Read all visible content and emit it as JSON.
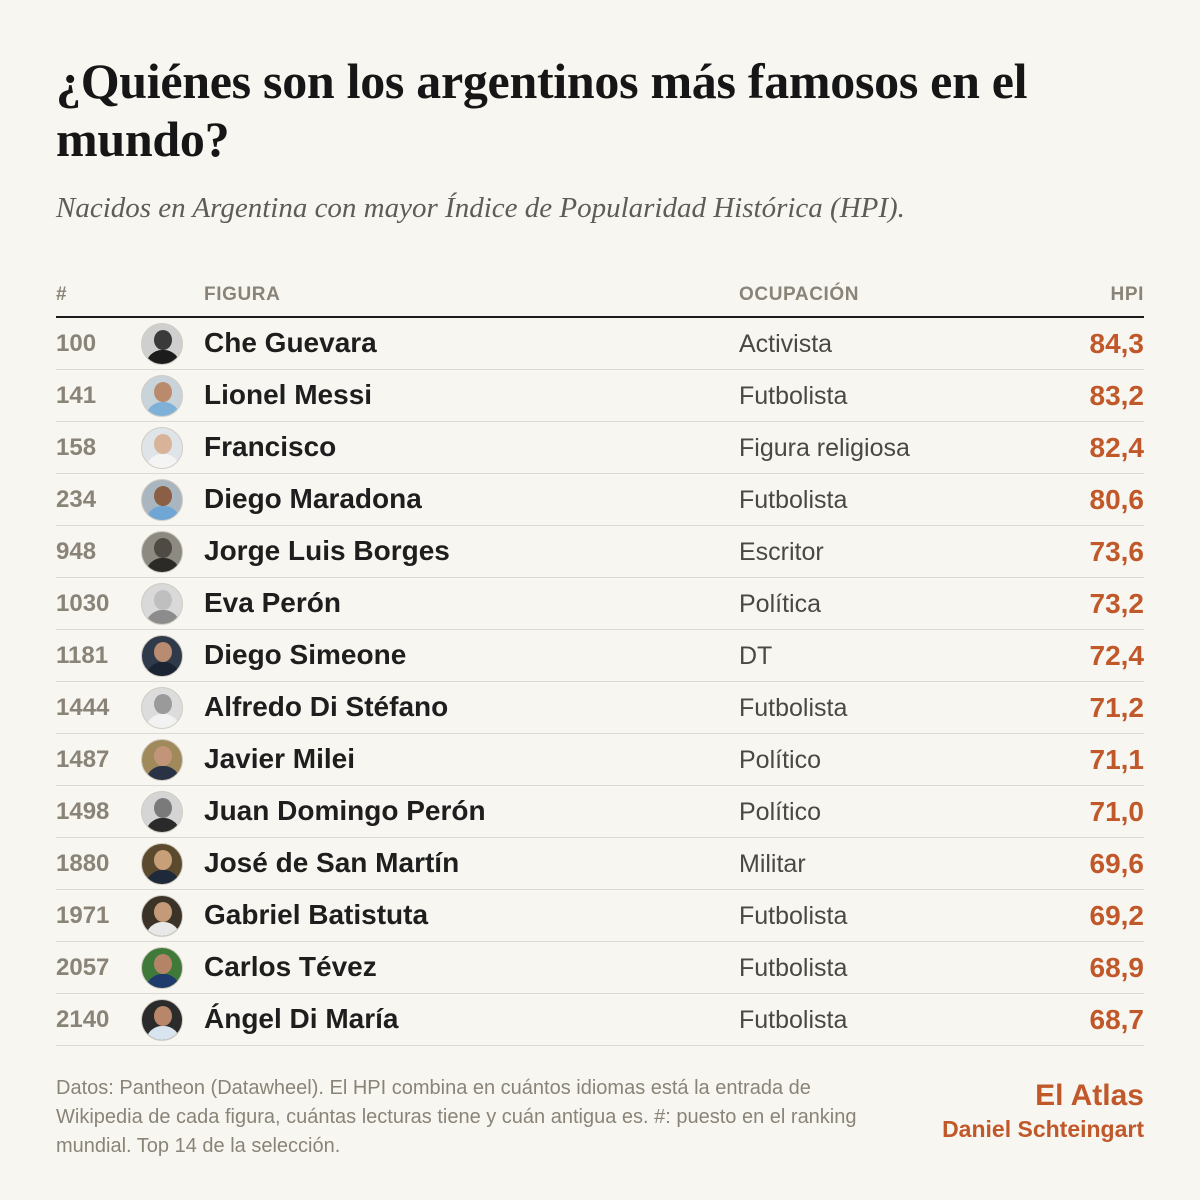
{
  "title": "¿Quiénes son los argentinos más famosos en el mundo?",
  "subtitle": "Nacidos en Argentina con mayor Índice de Popularidad Histórica (HPI).",
  "table": {
    "headers": {
      "rank": "#",
      "figure": "FIGURA",
      "occupation": "OCUPACIÓN",
      "hpi": "HPI"
    }
  },
  "chart_data": {
    "type": "table",
    "columns": [
      "#",
      "FIGURA",
      "OCUPACIÓN",
      "HPI"
    ],
    "rows": [
      {
        "rank": "100",
        "name": "Che Guevara",
        "occupation": "Activista",
        "hpi": "84,3",
        "avatar": {
          "bg": "#cfcfcf",
          "skin": "#3a3a3a",
          "cloth": "#1c1c1c"
        }
      },
      {
        "rank": "141",
        "name": "Lionel Messi",
        "occupation": "Futbolista",
        "hpi": "83,2",
        "avatar": {
          "bg": "#c9d3da",
          "skin": "#b98a6b",
          "cloth": "#7fb0d8"
        }
      },
      {
        "rank": "158",
        "name": "Francisco",
        "occupation": "Figura religiosa",
        "hpi": "82,4",
        "avatar": {
          "bg": "#dfe4e8",
          "skin": "#d8b39a",
          "cloth": "#f4f4f4"
        }
      },
      {
        "rank": "234",
        "name": "Diego Maradona",
        "occupation": "Futbolista",
        "hpi": "80,6",
        "avatar": {
          "bg": "#a9b6c0",
          "skin": "#8a5f45",
          "cloth": "#6fa6d4"
        }
      },
      {
        "rank": "948",
        "name": "Jorge Luis Borges",
        "occupation": "Escritor",
        "hpi": "73,6",
        "avatar": {
          "bg": "#8d8a82",
          "skin": "#4f4b44",
          "cloth": "#2c2a26"
        }
      },
      {
        "rank": "1030",
        "name": "Eva Perón",
        "occupation": "Política",
        "hpi": "73,2",
        "avatar": {
          "bg": "#d9d9d9",
          "skin": "#bfbfbf",
          "cloth": "#8c8c8c"
        }
      },
      {
        "rank": "1181",
        "name": "Diego Simeone",
        "occupation": "DT",
        "hpi": "72,4",
        "avatar": {
          "bg": "#2f3a4a",
          "skin": "#b98b70",
          "cloth": "#1b2433"
        }
      },
      {
        "rank": "1444",
        "name": "Alfredo Di Stéfano",
        "occupation": "Futbolista",
        "hpi": "71,2",
        "avatar": {
          "bg": "#dcdcdc",
          "skin": "#9a9a9a",
          "cloth": "#f2f2f2"
        }
      },
      {
        "rank": "1487",
        "name": "Javier Milei",
        "occupation": "Político",
        "hpi": "71,1",
        "avatar": {
          "bg": "#a08a5c",
          "skin": "#c29478",
          "cloth": "#2a3246"
        }
      },
      {
        "rank": "1498",
        "name": "Juan Domingo Perón",
        "occupation": "Político",
        "hpi": "71,0",
        "avatar": {
          "bg": "#d5d5d5",
          "skin": "#7a7a7a",
          "cloth": "#2a2a2a"
        }
      },
      {
        "rank": "1880",
        "name": "José de San Martín",
        "occupation": "Militar",
        "hpi": "69,6",
        "avatar": {
          "bg": "#5c4a2e",
          "skin": "#c7a07a",
          "cloth": "#1e2a3a"
        }
      },
      {
        "rank": "1971",
        "name": "Gabriel Batistuta",
        "occupation": "Futbolista",
        "hpi": "69,2",
        "avatar": {
          "bg": "#3b3328",
          "skin": "#c59a78",
          "cloth": "#e8e8e8"
        }
      },
      {
        "rank": "2057",
        "name": "Carlos Tévez",
        "occupation": "Futbolista",
        "hpi": "68,9",
        "avatar": {
          "bg": "#3f7a3a",
          "skin": "#b58466",
          "cloth": "#1f3b6b"
        }
      },
      {
        "rank": "2140",
        "name": "Ángel Di María",
        "occupation": "Futbolista",
        "hpi": "68,7",
        "avatar": {
          "bg": "#2b2b2b",
          "skin": "#b8876a",
          "cloth": "#d8e4ee"
        }
      }
    ]
  },
  "footer": {
    "notes": "Datos: Pantheon (Datawheel). El HPI combina en cuántos idiomas está la entrada de Wikipedia de cada figura, cuántas lecturas tiene y cuán antigua es. #: puesto en el ranking mundial. Top 14 de la selección.",
    "brand": "El Atlas",
    "author": "Daniel Schteingart"
  },
  "colors": {
    "background": "#f8f6f1",
    "accent": "#c0582a",
    "muted": "#8a8478"
  }
}
